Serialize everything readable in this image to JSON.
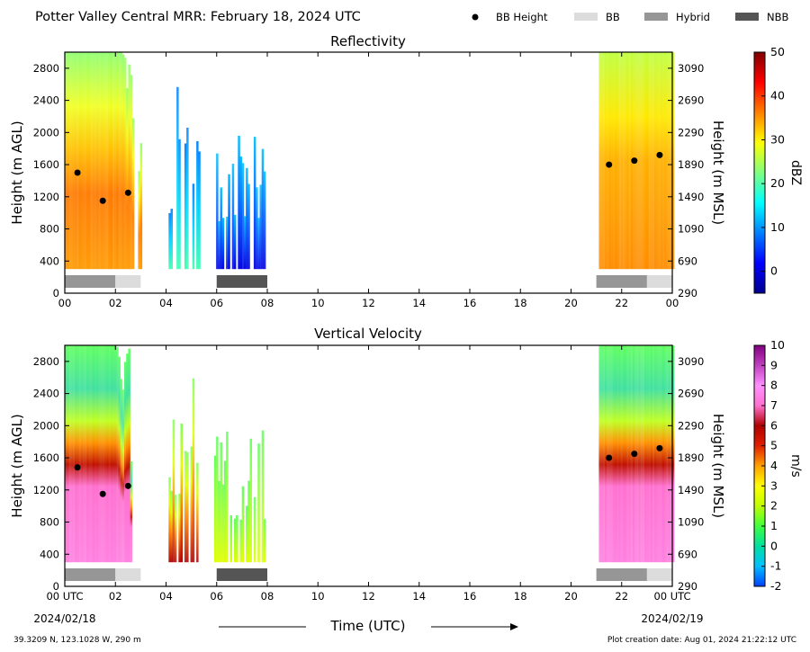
{
  "header": {
    "title": "Potter Valley Central MRR:  February 18, 2024 UTC",
    "legend": [
      {
        "label": "BB Height",
        "kind": "dot",
        "color": "#000000"
      },
      {
        "label": "BB",
        "kind": "patch",
        "color": "#dcdcdc"
      },
      {
        "label": "Hybrid",
        "kind": "patch",
        "color": "#969696"
      },
      {
        "label": "NBB",
        "kind": "patch",
        "color": "#555555"
      }
    ]
  },
  "footer": {
    "location": "39.3209 N, 123.1028 W, 290 m",
    "created": "Plot creation date: Aug 01, 2024 21:22:12 UTC",
    "xlabel": "Time (UTC)",
    "start_date": "2024/02/18",
    "end_date": "2024/02/19",
    "start_time_label": "00 UTC",
    "end_time_label": "00 UTC"
  },
  "chart_data": [
    {
      "type": "heatmap",
      "title": "Reflectivity",
      "xlabel": "",
      "ylabel": "Height (m AGL)",
      "ylabel_right": "Height (m MSL)",
      "xlim": [
        0,
        24
      ],
      "ylim": [
        0,
        3000
      ],
      "x_ticks": [
        "00",
        "02",
        "04",
        "06",
        "08",
        "10",
        "12",
        "14",
        "16",
        "18",
        "20",
        "22",
        "00"
      ],
      "y_ticks_left": [
        "0",
        "400",
        "800",
        "1200",
        "1600",
        "2000",
        "2400",
        "2800"
      ],
      "y_ticks_right": [
        "290",
        "690",
        "1090",
        "1490",
        "1890",
        "2290",
        "2690",
        "3090"
      ],
      "colorbar": {
        "label": "dBZ",
        "min": -5,
        "max": 50,
        "ticks": [
          "0",
          "10",
          "20",
          "30",
          "40",
          "50"
        ],
        "colors": [
          "#00008f",
          "#0000ff",
          "#0080ff",
          "#00ffff",
          "#80ff80",
          "#ffff00",
          "#ff8000",
          "#ff0000",
          "#800000"
        ]
      },
      "bb_points": [
        [
          0.5,
          1500
        ],
        [
          1.5,
          1150
        ],
        [
          2.5,
          1250
        ],
        [
          21.5,
          1600
        ],
        [
          22.5,
          1650
        ],
        [
          23.5,
          1720
        ]
      ],
      "bb_bars": [
        {
          "start": 0,
          "end": 2,
          "type": "Hybrid"
        },
        {
          "start": 2,
          "end": 3,
          "type": "BB"
        },
        {
          "start": 6,
          "end": 8,
          "type": "NBB"
        },
        {
          "start": 21,
          "end": 23,
          "type": "Hybrid"
        },
        {
          "start": 23,
          "end": 24,
          "type": "BB"
        }
      ],
      "echo_regions": [
        {
          "start": 0,
          "end": 3,
          "top": 3000
        },
        {
          "start": 4.1,
          "end": 5.3,
          "top": 2800
        },
        {
          "start": 5.9,
          "end": 7.9,
          "top": 2000
        },
        {
          "start": 21.1,
          "end": 24,
          "top": 3000
        }
      ]
    },
    {
      "type": "heatmap",
      "title": "Vertical Velocity",
      "xlabel": "Time (UTC)",
      "ylabel": "Height (m AGL)",
      "ylabel_right": "Height (m MSL)",
      "xlim": [
        0,
        24
      ],
      "ylim": [
        0,
        3000
      ],
      "x_ticks": [
        "00 UTC",
        "02",
        "04",
        "06",
        "08",
        "10",
        "12",
        "14",
        "16",
        "18",
        "20",
        "22",
        "00 UTC"
      ],
      "y_ticks_left": [
        "0",
        "400",
        "800",
        "1200",
        "1600",
        "2000",
        "2400",
        "2800"
      ],
      "y_ticks_right": [
        "290",
        "690",
        "1090",
        "1490",
        "1890",
        "2290",
        "2690",
        "3090"
      ],
      "colorbar": {
        "label": "m/s",
        "min": -2,
        "max": 10,
        "ticks": [
          "-2",
          "-1",
          "0",
          "1",
          "2",
          "3",
          "4",
          "5",
          "6",
          "7",
          "8",
          "9",
          "10"
        ],
        "colors": [
          "#0040ff",
          "#00c0ff",
          "#00e0a0",
          "#40ff40",
          "#c0ff00",
          "#ffff00",
          "#ffa000",
          "#e02000",
          "#b00000",
          "#ff70d0",
          "#ff90ff",
          "#c040c0",
          "#800080"
        ]
      },
      "bb_points": [
        [
          0.5,
          1480
        ],
        [
          1.5,
          1150
        ],
        [
          2.5,
          1250
        ],
        [
          21.5,
          1600
        ],
        [
          22.5,
          1650
        ],
        [
          23.5,
          1720
        ]
      ],
      "bb_bars": [
        {
          "start": 0,
          "end": 2,
          "type": "Hybrid"
        },
        {
          "start": 2,
          "end": 3,
          "type": "BB"
        },
        {
          "start": 6,
          "end": 8,
          "type": "NBB"
        },
        {
          "start": 21,
          "end": 23,
          "type": "Hybrid"
        },
        {
          "start": 23,
          "end": 24,
          "type": "BB"
        }
      ],
      "echo_regions": [
        {
          "start": 0,
          "end": 2.7,
          "top": 3000
        },
        {
          "start": 4.1,
          "end": 5.2,
          "top": 2800
        },
        {
          "start": 5.9,
          "end": 7.9,
          "top": 1980
        },
        {
          "start": 21.1,
          "end": 24,
          "top": 3000
        }
      ]
    }
  ]
}
